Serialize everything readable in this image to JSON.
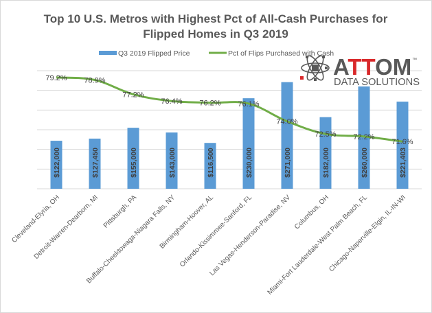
{
  "chart_data": {
    "type": "bar",
    "title_lines": [
      "Top 10 U.S. Metros with Highest Pct of All-Cash Purchases for",
      "Flipped Homes in Q3 2019"
    ],
    "categories": [
      "Cleveland-Elyria, OH",
      "Detroit-Warren-Dearborn, MI",
      "Pittsburgh, PA",
      "Buffalo-Cheektowaga-Niagara Falls, NY",
      "Birmingham-Hoover, AL",
      "Orlando-Kissimmee-Sanford, FL",
      "Las Vegas-Henderson-Paradise, NV",
      "Columbus, OH",
      "Miami-Fort Lauderdale-West Palm Beach, FL",
      "Chicago-Naperville-Elgin, IL-IN-WI"
    ],
    "series": [
      {
        "name": "Q3 2019 Flipped Price",
        "type": "bar",
        "axis": "primary",
        "color": "#5b9bd5",
        "values": [
          122000,
          127450,
          155000,
          143000,
          116500,
          230000,
          271000,
          182000,
          260000,
          221403
        ],
        "labels": [
          "$122,000",
          "$127,450",
          "$155,000",
          "$143,000",
          "$116,500",
          "$230,000",
          "$271,000",
          "$182,000",
          "$260,000",
          "$221,403"
        ]
      },
      {
        "name": "Pct of Flips Purchased with Cash",
        "type": "line",
        "axis": "secondary",
        "color": "#70ad47",
        "values": [
          79.2,
          78.9,
          77.2,
          76.4,
          76.2,
          76.1,
          74.0,
          72.5,
          72.2,
          71.6
        ],
        "labels": [
          "79.2%",
          "78.9%",
          "77.2%",
          "76.4%",
          "76.2%",
          "76.1%",
          "74.0%",
          "72.5%",
          "72.2%",
          "71.6%"
        ]
      }
    ],
    "ylim": [
      0,
      300000
    ],
    "y2lim": [
      66,
      80
    ],
    "gridlines": 6,
    "grid": true,
    "legend": "top",
    "axis_tick_labels_visible": false
  },
  "logo": {
    "brand_prefix": "A",
    "brand_highlight": "TT",
    "brand_suffix": "OM",
    "trademark": "™",
    "tagline": "DATA SOLUTIONS",
    "color_gray": "#595959",
    "color_red": "#d9292b"
  },
  "colors": {
    "gridline": "#d9d9d9",
    "text": "#595959"
  }
}
